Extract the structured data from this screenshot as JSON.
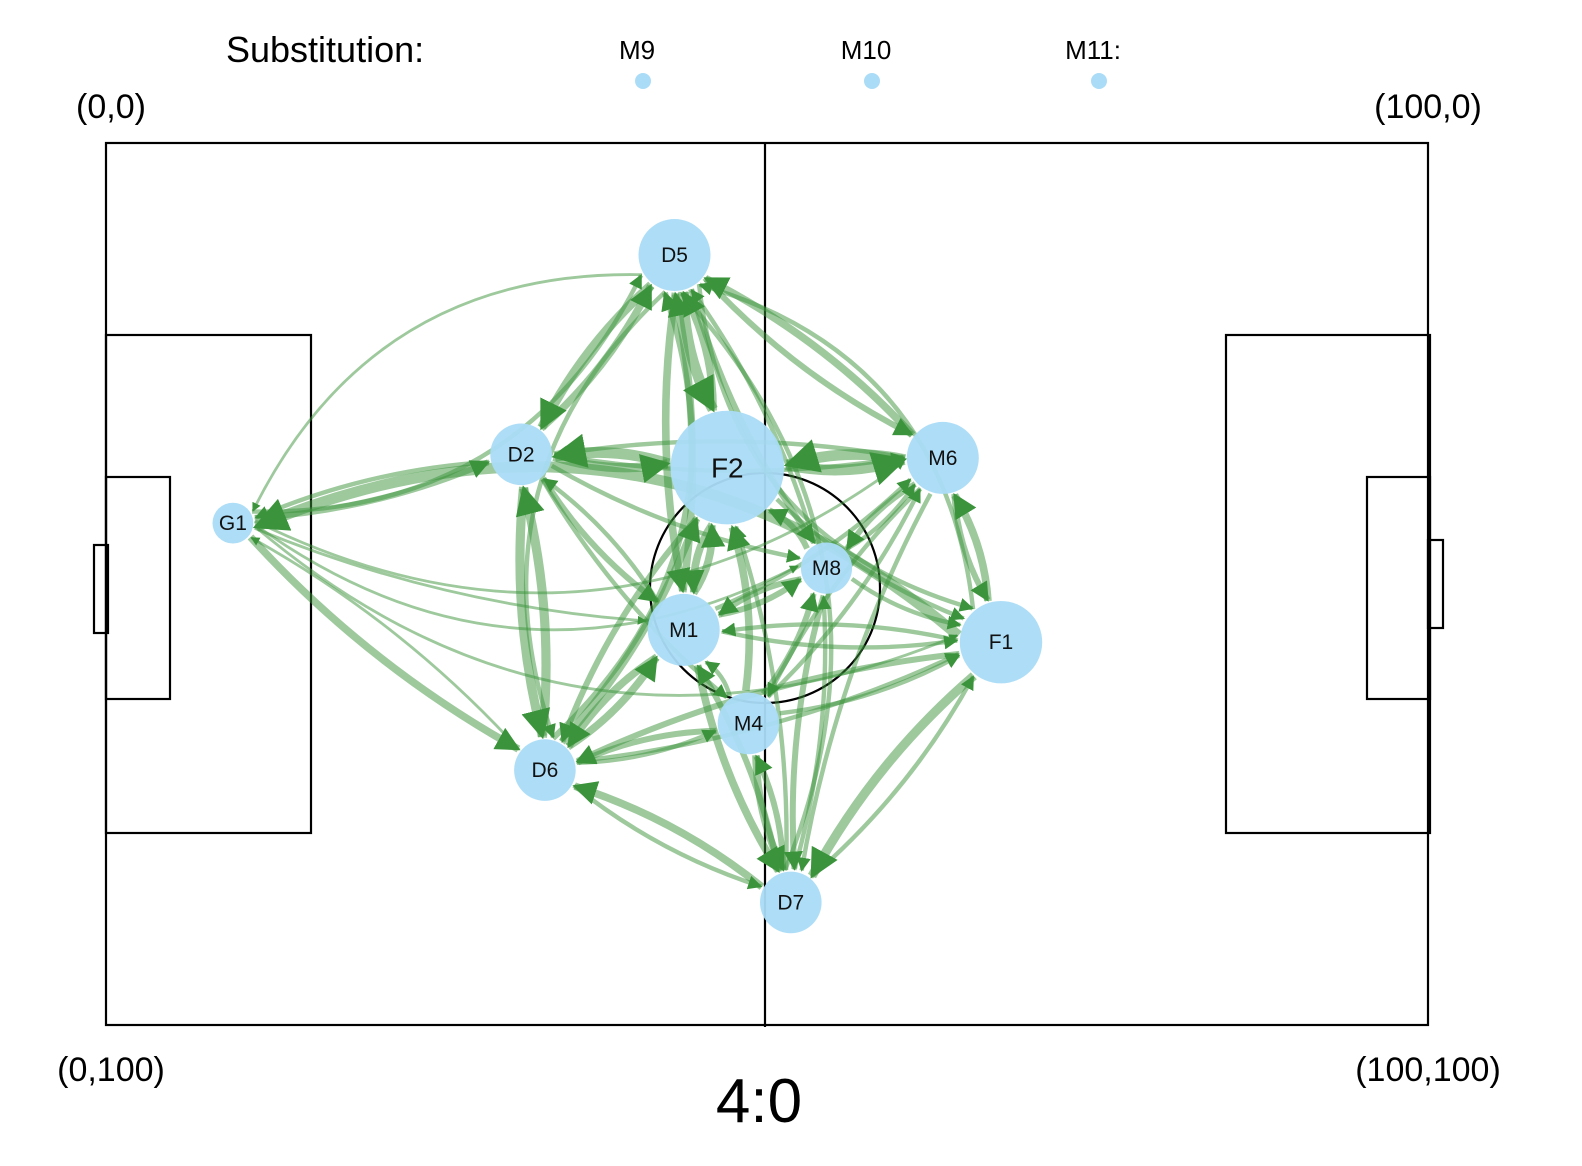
{
  "labels": {
    "substitution": "Substitution:",
    "corner_top_left": "(0,0)",
    "corner_top_right": "(100,0)",
    "corner_bottom_left": "(0,100)",
    "corner_bottom_right": "(100,100)",
    "score": "4:0"
  },
  "colors": {
    "node": "#aadcf7",
    "edge": "#3b943b",
    "pitch_line": "#000000"
  },
  "substitutes": [
    {
      "id": "M9",
      "label": "M9"
    },
    {
      "id": "M10",
      "label": "M10"
    },
    {
      "id": "M11",
      "label": "M11:"
    }
  ],
  "players": [
    {
      "id": "G1",
      "label": "G1",
      "x": 9.6,
      "y": 43.1,
      "size": 2
    },
    {
      "id": "D2",
      "label": "D2",
      "x": 31.4,
      "y": 35.3,
      "size": 4
    },
    {
      "id": "D5",
      "label": "D5",
      "x": 43.0,
      "y": 12.7,
      "size": 5
    },
    {
      "id": "F2",
      "label": "F2",
      "x": 47.0,
      "y": 36.8,
      "size": 9
    },
    {
      "id": "M6",
      "label": "M6",
      "x": 63.3,
      "y": 35.7,
      "size": 5
    },
    {
      "id": "M8",
      "label": "M8",
      "x": 54.5,
      "y": 48.2,
      "size": 3
    },
    {
      "id": "M1",
      "label": "M1",
      "x": 43.7,
      "y": 55.2,
      "size": 5
    },
    {
      "id": "F1",
      "label": "F1",
      "x": 67.7,
      "y": 56.6,
      "size": 6
    },
    {
      "id": "M4",
      "label": "M4",
      "x": 48.6,
      "y": 65.8,
      "size": 4
    },
    {
      "id": "D6",
      "label": "D6",
      "x": 33.2,
      "y": 71.1,
      "size": 4
    },
    {
      "id": "D7",
      "label": "D7",
      "x": 51.8,
      "y": 86.1,
      "size": 4
    }
  ],
  "passes": [
    {
      "from": "G1",
      "to": "D2",
      "weight": 3
    },
    {
      "from": "G1",
      "to": "D5",
      "weight": 2
    },
    {
      "from": "G1",
      "to": "D6",
      "weight": 4
    },
    {
      "from": "G1",
      "to": "M6",
      "weight": 1
    },
    {
      "from": "G1",
      "to": "M8",
      "weight": 1
    },
    {
      "from": "G1",
      "to": "M1",
      "weight": 1
    },
    {
      "from": "G1",
      "to": "F1",
      "weight": 1
    },
    {
      "from": "D2",
      "to": "G1",
      "weight": 2
    },
    {
      "from": "D2",
      "to": "F2",
      "weight": 5
    },
    {
      "from": "D2",
      "to": "D5",
      "weight": 4
    },
    {
      "from": "D2",
      "to": "D6",
      "weight": 5
    },
    {
      "from": "D2",
      "to": "M1",
      "weight": 3
    },
    {
      "from": "D2",
      "to": "M8",
      "weight": 2
    },
    {
      "from": "D2",
      "to": "M4",
      "weight": 2
    },
    {
      "from": "D2",
      "to": "M6",
      "weight": 2
    },
    {
      "from": "D5",
      "to": "D2",
      "weight": 5
    },
    {
      "from": "D5",
      "to": "F2",
      "weight": 6
    },
    {
      "from": "D5",
      "to": "M6",
      "weight": 3
    },
    {
      "from": "D5",
      "to": "M1",
      "weight": 4
    },
    {
      "from": "D5",
      "to": "M8",
      "weight": 3
    },
    {
      "from": "D5",
      "to": "G1",
      "weight": 1
    },
    {
      "from": "D5",
      "to": "F1",
      "weight": 2
    },
    {
      "from": "D5",
      "to": "D6",
      "weight": 2
    },
    {
      "from": "F2",
      "to": "D2",
      "weight": 6
    },
    {
      "from": "F2",
      "to": "D5",
      "weight": 4
    },
    {
      "from": "F2",
      "to": "M6",
      "weight": 6
    },
    {
      "from": "F2",
      "to": "M1",
      "weight": 4
    },
    {
      "from": "F2",
      "to": "D6",
      "weight": 3
    },
    {
      "from": "F2",
      "to": "F1",
      "weight": 2
    },
    {
      "from": "M6",
      "to": "F2",
      "weight": 6
    },
    {
      "from": "M6",
      "to": "D5",
      "weight": 4
    },
    {
      "from": "M6",
      "to": "F1",
      "weight": 3
    },
    {
      "from": "M6",
      "to": "M8",
      "weight": 3
    },
    {
      "from": "M6",
      "to": "D7",
      "weight": 2
    },
    {
      "from": "M6",
      "to": "M4",
      "weight": 2
    },
    {
      "from": "M6",
      "to": "D2",
      "weight": 2
    },
    {
      "from": "M8",
      "to": "M1",
      "weight": 3
    },
    {
      "from": "M8",
      "to": "F2",
      "weight": 3
    },
    {
      "from": "M8",
      "to": "D5",
      "weight": 2
    },
    {
      "from": "M8",
      "to": "F1",
      "weight": 2
    },
    {
      "from": "M8",
      "to": "D7",
      "weight": 3
    },
    {
      "from": "M8",
      "to": "M6",
      "weight": 2
    },
    {
      "from": "M1",
      "to": "D5",
      "weight": 4
    },
    {
      "from": "M1",
      "to": "F2",
      "weight": 4
    },
    {
      "from": "M1",
      "to": "D6",
      "weight": 4
    },
    {
      "from": "M1",
      "to": "M8",
      "weight": 3
    },
    {
      "from": "M1",
      "to": "D7",
      "weight": 4
    },
    {
      "from": "M1",
      "to": "F1",
      "weight": 2
    },
    {
      "from": "M1",
      "to": "M6",
      "weight": 2
    },
    {
      "from": "M1",
      "to": "D2",
      "weight": 2
    },
    {
      "from": "F1",
      "to": "M6",
      "weight": 4
    },
    {
      "from": "F1",
      "to": "D7",
      "weight": 5
    },
    {
      "from": "F1",
      "to": "D6",
      "weight": 3
    },
    {
      "from": "F1",
      "to": "M1",
      "weight": 2
    },
    {
      "from": "F1",
      "to": "D5",
      "weight": 2
    },
    {
      "from": "F1",
      "to": "G1",
      "weight": 6
    },
    {
      "from": "M4",
      "to": "F2",
      "weight": 4
    },
    {
      "from": "M4",
      "to": "D6",
      "weight": 3
    },
    {
      "from": "M4",
      "to": "M8",
      "weight": 3
    },
    {
      "from": "M4",
      "to": "D7",
      "weight": 4
    },
    {
      "from": "M4",
      "to": "F1",
      "weight": 2
    },
    {
      "from": "M4",
      "to": "M1",
      "weight": 2
    },
    {
      "from": "M4",
      "to": "M6",
      "weight": 2
    },
    {
      "from": "D6",
      "to": "D2",
      "weight": 5
    },
    {
      "from": "D6",
      "to": "D5",
      "weight": 3
    },
    {
      "from": "D6",
      "to": "F2",
      "weight": 4
    },
    {
      "from": "D6",
      "to": "M1",
      "weight": 4
    },
    {
      "from": "D6",
      "to": "M4",
      "weight": 2
    },
    {
      "from": "D6",
      "to": "D7",
      "weight": 2
    },
    {
      "from": "D6",
      "to": "G1",
      "weight": 1
    },
    {
      "from": "D6",
      "to": "F1",
      "weight": 2
    },
    {
      "from": "D7",
      "to": "D6",
      "weight": 4
    },
    {
      "from": "D7",
      "to": "M4",
      "weight": 3
    },
    {
      "from": "D7",
      "to": "M1",
      "weight": 3
    },
    {
      "from": "D7",
      "to": "M8",
      "weight": 2
    },
    {
      "from": "D7",
      "to": "F1",
      "weight": 2
    },
    {
      "from": "D7",
      "to": "F2",
      "weight": 2
    },
    {
      "from": "D7",
      "to": "D5",
      "weight": 2
    }
  ]
}
